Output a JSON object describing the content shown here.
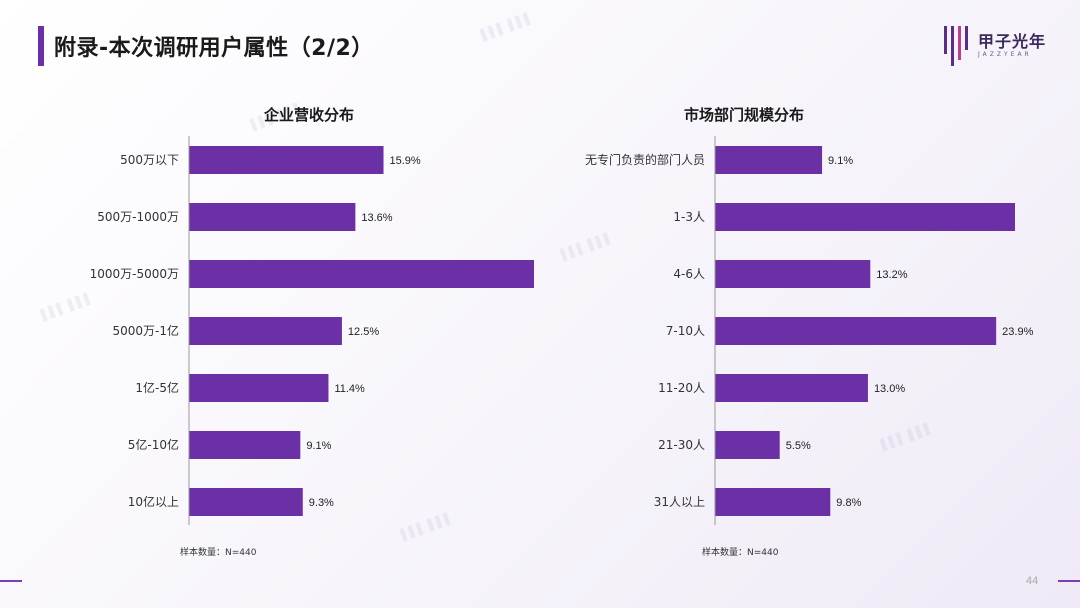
{
  "header": {
    "title": "附录-本次调研用户属性（2/2）",
    "logo_text": "甲子光年",
    "logo_sub": "JAZZYEAR",
    "accent_color": "#6b2fa6"
  },
  "footer": {
    "page_number": "44"
  },
  "chart_data": [
    {
      "type": "bar",
      "orientation": "horizontal",
      "title": "企业营收分布",
      "categories": [
        "500万以下",
        "500万-1000万",
        "1000万-5000万",
        "5000万-1亿",
        "1亿-5亿",
        "5亿-10亿",
        "10亿以上"
      ],
      "values": [
        15.9,
        13.6,
        28.2,
        12.5,
        11.4,
        9.1,
        9.3
      ],
      "data_labels": [
        "15.9%",
        "13.6%",
        "",
        "12.5%",
        "11.4%",
        "9.1%",
        "9.3%"
      ],
      "xlim": [
        0,
        28.2
      ],
      "bar_color": "#6b2fa6",
      "sample_note": "样本数量：N=440"
    },
    {
      "type": "bar",
      "orientation": "horizontal",
      "title": "市场部门规模分布",
      "categories": [
        "无专门负责的部门人员",
        "1-3人",
        "4-6人",
        "7-10人",
        "11-20人",
        "21-30人",
        "31人以上"
      ],
      "values": [
        9.1,
        25.5,
        13.2,
        23.9,
        13.0,
        5.5,
        9.8
      ],
      "data_labels": [
        "9.1%",
        "",
        "13.2%",
        "23.9%",
        "13.0%",
        "5.5%",
        "9.8%"
      ],
      "xlim": [
        0,
        25.5
      ],
      "bar_color": "#6b2fa6",
      "sample_note": "样本数量：N=440"
    }
  ]
}
